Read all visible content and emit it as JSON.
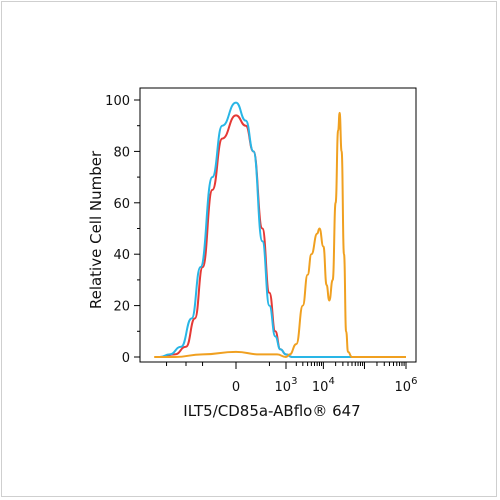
{
  "chart_data": {
    "type": "line",
    "title": "",
    "xlabel": "ILT5/CD85a-ABflo® 647",
    "ylabel": "Relative Cell Number",
    "x_scale": "biexponential",
    "xlim": [
      -3000,
      1000000
    ],
    "ylim": [
      0,
      100
    ],
    "y_ticks": [
      0,
      20,
      40,
      60,
      80,
      100
    ],
    "x_ticks": [
      {
        "value": 0,
        "base": "0",
        "exp": ""
      },
      {
        "value": 1000,
        "base": "10",
        "exp": "3"
      },
      {
        "value": 10000,
        "base": "10",
        "exp": "4"
      },
      {
        "value": 1000000,
        "base": "10",
        "exp": "6"
      }
    ],
    "grid": false,
    "legend": "none",
    "series": [
      {
        "color": "#e53935",
        "points": [
          [
            -2500,
            0
          ],
          [
            -1500,
            1
          ],
          [
            -1000,
            4
          ],
          [
            -700,
            15
          ],
          [
            -500,
            35
          ],
          [
            -300,
            65
          ],
          [
            -150,
            85
          ],
          [
            0,
            94
          ],
          [
            100,
            90
          ],
          [
            200,
            80
          ],
          [
            350,
            50
          ],
          [
            500,
            25
          ],
          [
            650,
            10
          ],
          [
            800,
            3
          ],
          [
            1000,
            1
          ],
          [
            1500,
            0
          ],
          [
            1000000,
            0
          ]
        ]
      },
      {
        "color": "#29b6e6",
        "points": [
          [
            -2500,
            0
          ],
          [
            -1800,
            1
          ],
          [
            -1200,
            4
          ],
          [
            -800,
            15
          ],
          [
            -550,
            35
          ],
          [
            -300,
            70
          ],
          [
            -150,
            90
          ],
          [
            0,
            99
          ],
          [
            100,
            92
          ],
          [
            200,
            80
          ],
          [
            350,
            45
          ],
          [
            500,
            20
          ],
          [
            650,
            8
          ],
          [
            800,
            3
          ],
          [
            1000,
            1
          ],
          [
            1500,
            0
          ],
          [
            1000000,
            0
          ]
        ]
      },
      {
        "color": "#f0a020",
        "points": [
          [
            -3000,
            0
          ],
          [
            -1500,
            0
          ],
          [
            -500,
            1
          ],
          [
            0,
            2
          ],
          [
            300,
            1
          ],
          [
            700,
            1
          ],
          [
            1000,
            0
          ],
          [
            1300,
            1
          ],
          [
            2000,
            5
          ],
          [
            3000,
            20
          ],
          [
            4000,
            32
          ],
          [
            5000,
            40
          ],
          [
            7000,
            48
          ],
          [
            8000,
            50
          ],
          [
            10000,
            43
          ],
          [
            12000,
            28
          ],
          [
            14000,
            22
          ],
          [
            17000,
            30
          ],
          [
            20000,
            60
          ],
          [
            23000,
            88
          ],
          [
            25000,
            95
          ],
          [
            28000,
            80
          ],
          [
            32000,
            40
          ],
          [
            36000,
            10
          ],
          [
            40000,
            2
          ],
          [
            50000,
            0
          ],
          [
            100000,
            0
          ],
          [
            1000000,
            0
          ]
        ]
      }
    ]
  }
}
